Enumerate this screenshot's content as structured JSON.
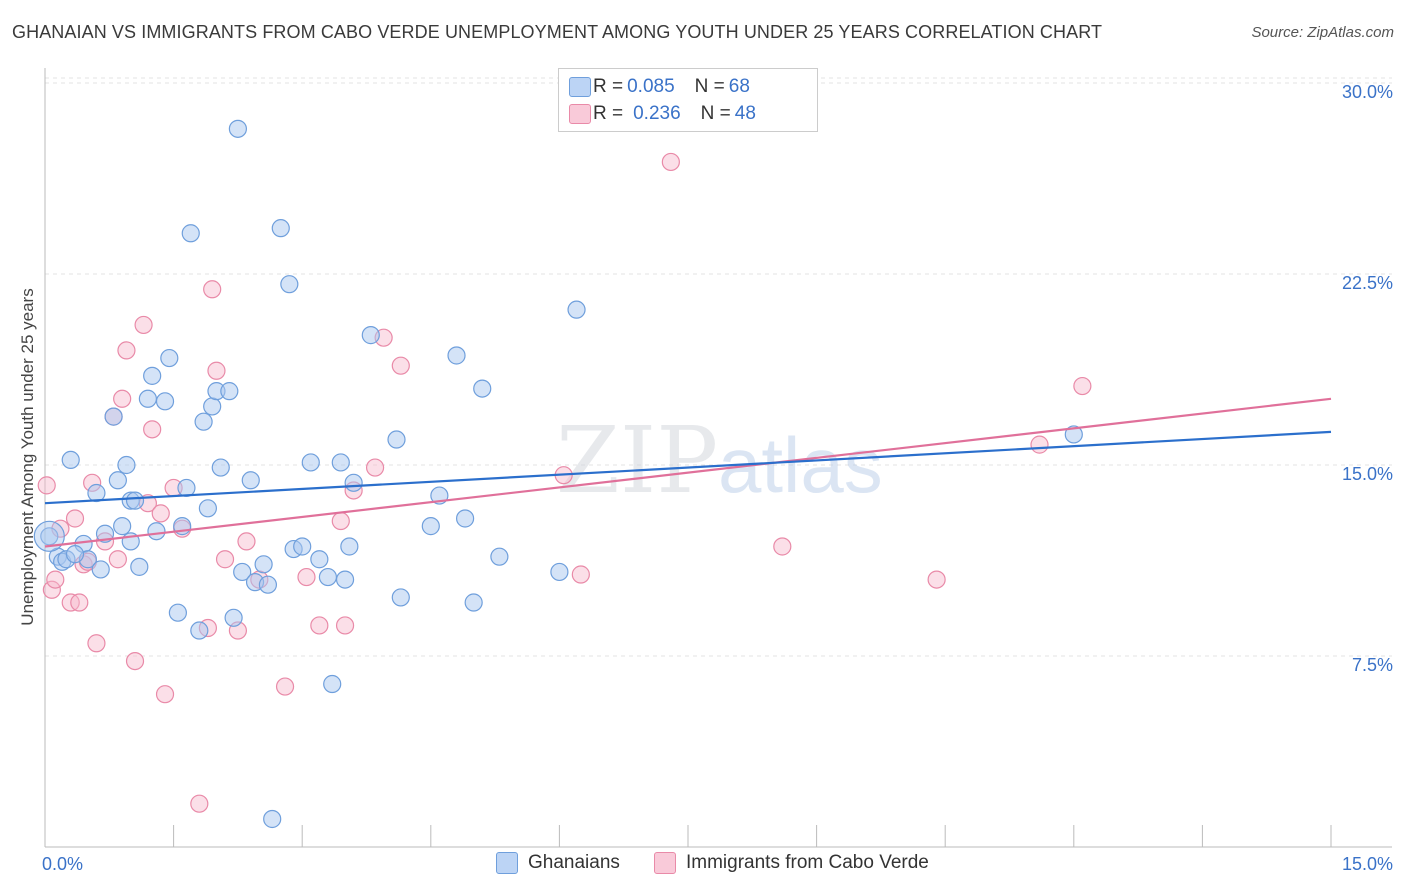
{
  "title": "GHANAIAN VS IMMIGRANTS FROM CABO VERDE UNEMPLOYMENT AMONG YOUTH UNDER 25 YEARS CORRELATION CHART",
  "source": "Source: ZipAtlas.com",
  "watermark": {
    "zip": "ZIP",
    "atlas": "atlas"
  },
  "legend_top": {
    "rows": [
      {
        "r_label": "R = ",
        "r_value": "0.085",
        "n_label": "N = ",
        "n_value": "68"
      },
      {
        "r_label": "R = ",
        "r_value": "0.236",
        "n_label": "N = ",
        "n_value": "48"
      }
    ]
  },
  "colors": {
    "blue_fill": "#a9c8f0",
    "blue_stroke": "#6f9fdc",
    "blue_line": "#2b6fcc",
    "pink_fill": "#f7b8cc",
    "pink_stroke": "#e98aa8",
    "pink_line": "#e0709a",
    "tick_text": "#3a72c8",
    "grid": "#e3e3e3"
  },
  "chart_data": {
    "type": "scatter",
    "title": "GHANAIAN VS IMMIGRANTS FROM CABO VERDE UNEMPLOYMENT AMONG YOUTH UNDER 25 YEARS CORRELATION CHART",
    "xlabel": "",
    "ylabel": "Unemployment Among Youth under 25 years",
    "xlim": [
      0,
      15
    ],
    "ylim": [
      0,
      30
    ],
    "x_tick_labels": [
      "0.0%",
      "15.0%"
    ],
    "y_ticks": [
      7.5,
      15,
      22.5,
      30
    ],
    "y_tick_labels": [
      "7.5%",
      "15.0%",
      "22.5%",
      "30.0%"
    ],
    "grid": true,
    "legend_position": "bottom",
    "series": [
      {
        "name": "Ghanaians",
        "stats": {
          "R": 0.085,
          "N": 68
        },
        "trend": {
          "x": [
            0,
            15
          ],
          "y": [
            13.5,
            16.3
          ]
        },
        "points": [
          [
            0.05,
            12.2
          ],
          [
            0.15,
            11.4
          ],
          [
            0.2,
            11.2
          ],
          [
            0.25,
            11.3
          ],
          [
            0.3,
            15.2
          ],
          [
            0.45,
            11.9
          ],
          [
            0.5,
            11.3
          ],
          [
            0.6,
            13.9
          ],
          [
            0.65,
            10.9
          ],
          [
            0.8,
            16.9
          ],
          [
            0.85,
            14.4
          ],
          [
            0.9,
            12.6
          ],
          [
            0.95,
            15.0
          ],
          [
            1.0,
            13.6
          ],
          [
            1.05,
            13.6
          ],
          [
            1.1,
            11.0
          ],
          [
            1.2,
            17.6
          ],
          [
            1.25,
            18.5
          ],
          [
            1.3,
            12.4
          ],
          [
            1.4,
            17.5
          ],
          [
            1.45,
            19.2
          ],
          [
            1.55,
            9.2
          ],
          [
            1.6,
            12.6
          ],
          [
            1.65,
            14.1
          ],
          [
            1.7,
            24.1
          ],
          [
            1.8,
            8.5
          ],
          [
            1.85,
            16.7
          ],
          [
            1.9,
            13.3
          ],
          [
            1.95,
            17.3
          ],
          [
            2.0,
            17.9
          ],
          [
            2.05,
            14.9
          ],
          [
            2.15,
            17.9
          ],
          [
            2.2,
            9.0
          ],
          [
            2.25,
            28.2
          ],
          [
            2.3,
            10.8
          ],
          [
            2.4,
            14.4
          ],
          [
            2.45,
            10.4
          ],
          [
            2.6,
            10.3
          ],
          [
            2.65,
            1.1
          ],
          [
            2.75,
            24.3
          ],
          [
            2.85,
            22.1
          ],
          [
            2.9,
            11.7
          ],
          [
            3.0,
            11.8
          ],
          [
            3.1,
            15.1
          ],
          [
            3.2,
            11.3
          ],
          [
            3.3,
            10.6
          ],
          [
            3.35,
            6.4
          ],
          [
            3.45,
            15.1
          ],
          [
            3.5,
            10.5
          ],
          [
            3.55,
            11.8
          ],
          [
            3.6,
            14.3
          ],
          [
            3.8,
            20.1
          ],
          [
            4.1,
            16.0
          ],
          [
            4.15,
            9.8
          ],
          [
            4.5,
            12.6
          ],
          [
            4.6,
            13.8
          ],
          [
            4.8,
            19.3
          ],
          [
            4.9,
            12.9
          ],
          [
            5.0,
            9.6
          ],
          [
            5.1,
            18.0
          ],
          [
            5.3,
            11.4
          ],
          [
            6.0,
            10.8
          ],
          [
            6.2,
            21.1
          ],
          [
            12.0,
            16.2
          ],
          [
            0.35,
            11.5
          ],
          [
            0.7,
            12.3
          ],
          [
            1.0,
            12.0
          ],
          [
            2.55,
            11.1
          ]
        ]
      },
      {
        "name": "Immigrants from Cabo Verde",
        "stats": {
          "R": 0.236,
          "N": 48
        },
        "trend": {
          "x": [
            0,
            15
          ],
          "y": [
            11.8,
            17.6
          ]
        },
        "points": [
          [
            0.02,
            14.2
          ],
          [
            0.08,
            10.1
          ],
          [
            0.12,
            10.5
          ],
          [
            0.18,
            12.5
          ],
          [
            0.3,
            9.6
          ],
          [
            0.35,
            12.9
          ],
          [
            0.4,
            9.6
          ],
          [
            0.45,
            11.1
          ],
          [
            0.5,
            11.2
          ],
          [
            0.55,
            14.3
          ],
          [
            0.6,
            8.0
          ],
          [
            0.7,
            12.0
          ],
          [
            0.8,
            16.9
          ],
          [
            0.85,
            11.3
          ],
          [
            0.9,
            17.6
          ],
          [
            0.95,
            19.5
          ],
          [
            1.05,
            7.3
          ],
          [
            1.15,
            20.5
          ],
          [
            1.2,
            13.5
          ],
          [
            1.25,
            16.4
          ],
          [
            1.35,
            13.1
          ],
          [
            1.4,
            6.0
          ],
          [
            1.5,
            14.1
          ],
          [
            1.6,
            12.5
          ],
          [
            1.8,
            1.7
          ],
          [
            1.9,
            8.6
          ],
          [
            1.95,
            21.9
          ],
          [
            2.0,
            18.7
          ],
          [
            2.1,
            11.3
          ],
          [
            2.25,
            8.5
          ],
          [
            2.35,
            12.0
          ],
          [
            2.5,
            10.5
          ],
          [
            2.8,
            6.3
          ],
          [
            3.05,
            10.6
          ],
          [
            3.2,
            8.7
          ],
          [
            3.45,
            12.8
          ],
          [
            3.5,
            8.7
          ],
          [
            3.6,
            14.0
          ],
          [
            3.85,
            14.9
          ],
          [
            3.95,
            20.0
          ],
          [
            4.15,
            18.9
          ],
          [
            6.05,
            14.6
          ],
          [
            6.25,
            10.7
          ],
          [
            7.3,
            26.9
          ],
          [
            8.6,
            11.8
          ],
          [
            10.4,
            10.5
          ],
          [
            11.6,
            15.8
          ],
          [
            12.1,
            18.1
          ]
        ]
      }
    ]
  }
}
